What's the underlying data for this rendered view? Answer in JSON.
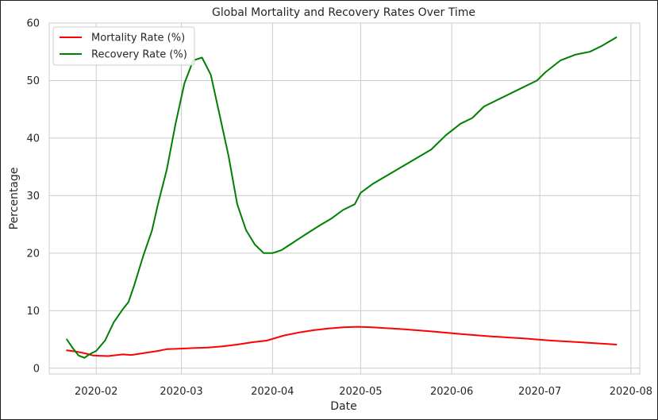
{
  "chart_data": {
    "type": "line",
    "title": "Global Mortality and Recovery Rates Over Time",
    "xlabel": "Date",
    "ylabel": "Percentage",
    "xlim": [
      "2020-01-16",
      "2020-08-04"
    ],
    "ylim": [
      -1,
      60
    ],
    "grid": true,
    "legend_position": "top-left",
    "x_ticks": [
      "2020-02-01",
      "2020-03-01",
      "2020-04-01",
      "2020-05-01",
      "2020-06-01",
      "2020-07-01",
      "2020-08-01"
    ],
    "x_tick_labels": [
      "2020-02",
      "2020-03",
      "2020-04",
      "2020-05",
      "2020-06",
      "2020-07",
      "2020-08"
    ],
    "y_ticks": [
      0,
      10,
      20,
      30,
      40,
      50,
      60
    ],
    "y_tick_labels": [
      "0",
      "10",
      "20",
      "30",
      "40",
      "50",
      "60"
    ],
    "series": [
      {
        "name": "Mortality Rate (%)",
        "color": "#ff0000",
        "x": [
          "2020-01-22",
          "2020-01-25",
          "2020-01-28",
          "2020-01-31",
          "2020-02-05",
          "2020-02-10",
          "2020-02-13",
          "2020-02-17",
          "2020-02-22",
          "2020-02-25",
          "2020-03-01",
          "2020-03-05",
          "2020-03-10",
          "2020-03-15",
          "2020-03-20",
          "2020-03-25",
          "2020-03-30",
          "2020-04-05",
          "2020-04-10",
          "2020-04-15",
          "2020-04-20",
          "2020-04-25",
          "2020-04-30",
          "2020-05-05",
          "2020-05-15",
          "2020-05-25",
          "2020-06-05",
          "2020-06-15",
          "2020-06-25",
          "2020-07-05",
          "2020-07-15",
          "2020-07-27"
        ],
        "values": [
          3.1,
          2.9,
          2.6,
          2.2,
          2.1,
          2.4,
          2.3,
          2.6,
          3.0,
          3.3,
          3.4,
          3.5,
          3.6,
          3.8,
          4.1,
          4.5,
          4.8,
          5.7,
          6.2,
          6.6,
          6.9,
          7.1,
          7.2,
          7.1,
          6.8,
          6.4,
          5.9,
          5.5,
          5.2,
          4.8,
          4.5,
          4.1
        ]
      },
      {
        "name": "Recovery Rate (%)",
        "color": "#008000",
        "x": [
          "2020-01-22",
          "2020-01-24",
          "2020-01-26",
          "2020-01-28",
          "2020-01-30",
          "2020-02-01",
          "2020-02-04",
          "2020-02-07",
          "2020-02-10",
          "2020-02-12",
          "2020-02-14",
          "2020-02-17",
          "2020-02-20",
          "2020-02-22",
          "2020-02-25",
          "2020-02-28",
          "2020-03-02",
          "2020-03-05",
          "2020-03-08",
          "2020-03-11",
          "2020-03-14",
          "2020-03-17",
          "2020-03-20",
          "2020-03-23",
          "2020-03-26",
          "2020-03-29",
          "2020-04-01",
          "2020-04-04",
          "2020-04-07",
          "2020-04-10",
          "2020-04-13",
          "2020-04-17",
          "2020-04-21",
          "2020-04-25",
          "2020-04-29",
          "2020-05-01",
          "2020-05-05",
          "2020-05-10",
          "2020-05-15",
          "2020-05-20",
          "2020-05-25",
          "2020-05-30",
          "2020-06-04",
          "2020-06-08",
          "2020-06-12",
          "2020-06-18",
          "2020-06-24",
          "2020-06-30",
          "2020-07-03",
          "2020-07-08",
          "2020-07-13",
          "2020-07-18",
          "2020-07-22",
          "2020-07-27"
        ],
        "values": [
          5.0,
          3.5,
          2.2,
          1.8,
          2.5,
          3.0,
          4.8,
          8.0,
          10.2,
          11.5,
          14.5,
          19.5,
          24.0,
          28.5,
          34.5,
          42.5,
          49.5,
          53.5,
          54.0,
          51.0,
          44.0,
          37.0,
          28.5,
          24.0,
          21.5,
          20.0,
          20.0,
          20.5,
          21.5,
          22.5,
          23.5,
          24.8,
          26.0,
          27.5,
          28.5,
          30.5,
          32.0,
          33.5,
          35.0,
          36.5,
          38.0,
          40.5,
          42.5,
          43.5,
          45.5,
          47.0,
          48.5,
          50.0,
          51.5,
          53.5,
          54.5,
          55.0,
          56.0,
          57.5
        ]
      }
    ]
  }
}
